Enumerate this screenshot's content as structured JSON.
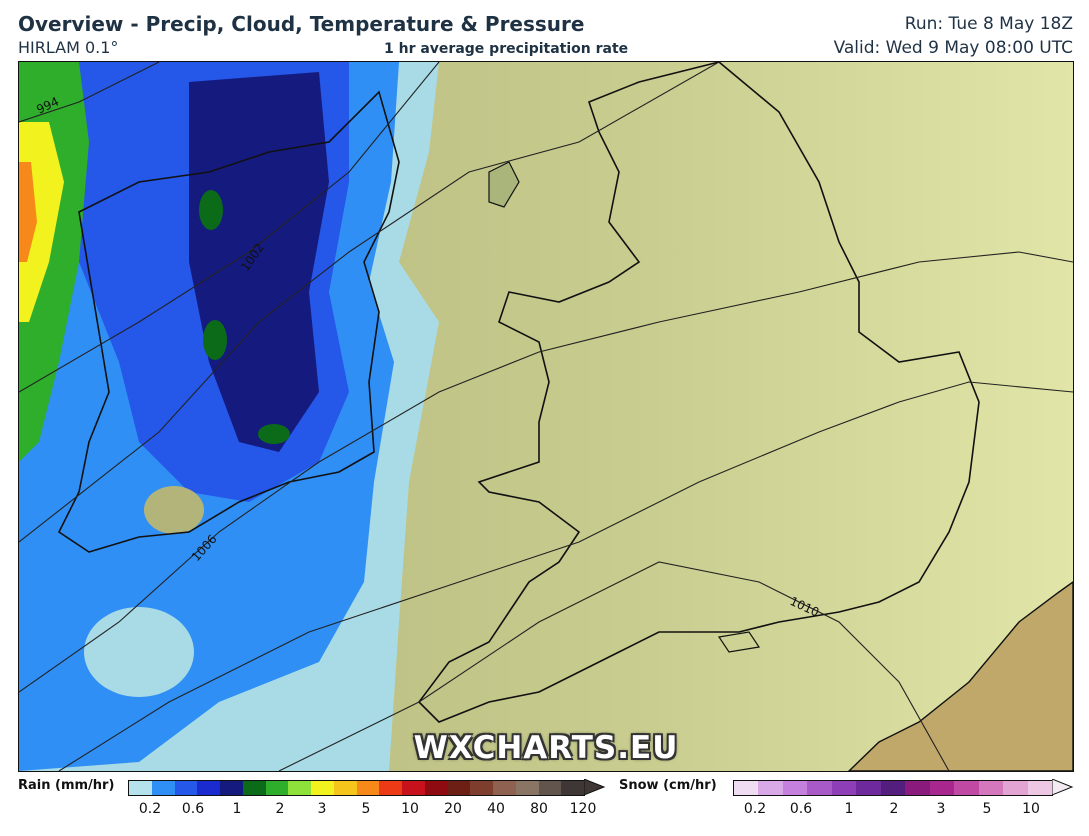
{
  "header": {
    "title": "Overview - Precip, Cloud, Temperature & Pressure",
    "model": "HIRLAM 0.1°",
    "subtitle": "1 hr average precipitation rate",
    "run": "Run: Tue 8 May 18Z",
    "valid": "Valid: Wed 9 May 08:00 UTC"
  },
  "map": {
    "watermark": "WXCHARTS.EU",
    "isobars": [
      "994",
      "1002",
      "1006",
      "1010"
    ]
  },
  "legend": {
    "rain": {
      "title": "Rain (mm/hr)",
      "colors": [
        "#b6e2ec",
        "#2f8ff5",
        "#2557e8",
        "#1a2ccf",
        "#151a7e",
        "#0c6b18",
        "#2fae2c",
        "#8ee03a",
        "#f2f21e",
        "#f6c51b",
        "#f7881a",
        "#ec3a17",
        "#c8121b",
        "#8e0b12",
        "#6d1e15",
        "#7d3e2e",
        "#8f6150",
        "#8a7464",
        "#62554d",
        "#3f3735"
      ],
      "ticks": [
        "0.2",
        "0.6",
        "1",
        "2",
        "3",
        "5",
        "10",
        "20",
        "40",
        "80",
        "120"
      ]
    },
    "snow": {
      "title": "Snow (cm/hr)",
      "colors": [
        "#efdcf2",
        "#d9a8e6",
        "#c57fdc",
        "#a95ac9",
        "#8e3eb7",
        "#6e2a9c",
        "#531e7d",
        "#8a1a7c",
        "#a8278e",
        "#c04aa3",
        "#d577bc",
        "#e3a3d3",
        "#edc7e3"
      ],
      "ticks": [
        "0.2",
        "0.6",
        "1",
        "2",
        "3",
        "5",
        "10"
      ]
    }
  }
}
